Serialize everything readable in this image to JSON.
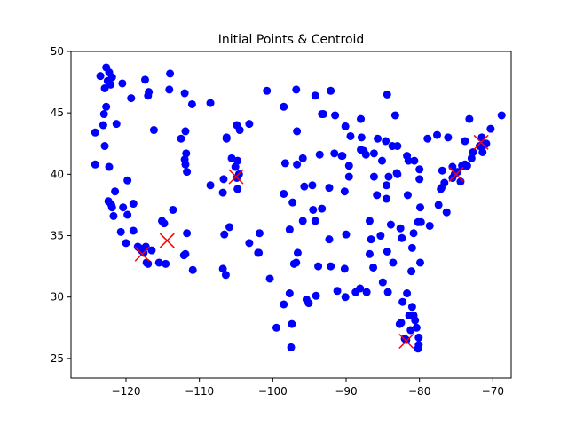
{
  "chart_data": {
    "type": "scatter",
    "title": "Initial Points & Centroid",
    "xlabel": "",
    "ylabel": "",
    "xlim": [
      -127.5,
      -67.5
    ],
    "ylim": [
      23.4,
      50
    ],
    "xticks": [
      -120,
      -110,
      -100,
      -90,
      -80,
      -70
    ],
    "xtick_labels": [
      "−120",
      "−110",
      "−100",
      "−90",
      "−80",
      "−70"
    ],
    "yticks": [
      25,
      30,
      35,
      40,
      45,
      50
    ],
    "ytick_labels": [
      "25",
      "30",
      "35",
      "40",
      "45",
      "50"
    ],
    "grid": false,
    "series": [
      {
        "marker": "circle",
        "color": "#0000ff",
        "points": [
          [
            -122.7,
            48.7
          ],
          [
            -122.3,
            48.3
          ],
          [
            -122.5,
            47.6
          ],
          [
            -122.1,
            47.3
          ],
          [
            -122.9,
            47.0
          ],
          [
            -123.5,
            48.0
          ],
          [
            -121.9,
            47.9
          ],
          [
            -120.5,
            47.4
          ],
          [
            -119.3,
            46.2
          ],
          [
            -117.4,
            47.7
          ],
          [
            -116.9,
            46.7
          ],
          [
            -117.0,
            46.4
          ],
          [
            -114.1,
            46.9
          ],
          [
            -114.0,
            48.2
          ],
          [
            -108.5,
            45.8
          ],
          [
            -111.0,
            45.7
          ],
          [
            -112.0,
            46.6
          ],
          [
            -104.9,
            44.0
          ],
          [
            -104.5,
            43.6
          ],
          [
            -106.3,
            42.9
          ],
          [
            -105.6,
            41.3
          ],
          [
            -104.8,
            41.1
          ],
          [
            -106.3,
            43.0
          ],
          [
            -104.6,
            40.0
          ],
          [
            -106.7,
            39.6
          ],
          [
            -108.5,
            39.1
          ],
          [
            -106.8,
            38.5
          ],
          [
            -104.8,
            38.8
          ],
          [
            -104.9,
            39.7
          ],
          [
            -105.1,
            40.6
          ],
          [
            -101.8,
            35.2
          ],
          [
            -102.0,
            33.6
          ],
          [
            -106.6,
            35.1
          ],
          [
            -106.8,
            32.3
          ],
          [
            -105.9,
            35.7
          ],
          [
            -103.2,
            34.4
          ],
          [
            -111.7,
            35.2
          ],
          [
            -111.9,
            33.5
          ],
          [
            -112.1,
            33.4
          ],
          [
            -110.9,
            32.2
          ],
          [
            -114.6,
            32.7
          ],
          [
            -113.6,
            37.1
          ],
          [
            -111.9,
            40.8
          ],
          [
            -111.7,
            40.2
          ],
          [
            -112.0,
            41.2
          ],
          [
            -111.8,
            41.7
          ],
          [
            -115.1,
            36.2
          ],
          [
            -114.8,
            36.0
          ],
          [
            -119.8,
            39.5
          ],
          [
            -116.2,
            43.6
          ],
          [
            -112.5,
            42.9
          ],
          [
            -111.9,
            43.5
          ],
          [
            -117.0,
            32.7
          ],
          [
            -117.2,
            32.8
          ],
          [
            -117.9,
            33.8
          ],
          [
            -118.2,
            34.0
          ],
          [
            -118.4,
            34.1
          ],
          [
            -117.3,
            34.1
          ],
          [
            -116.5,
            33.8
          ],
          [
            -117.6,
            33.6
          ],
          [
            -119.0,
            35.4
          ],
          [
            -119.8,
            36.7
          ],
          [
            -120.7,
            35.3
          ],
          [
            -121.9,
            37.3
          ],
          [
            -122.4,
            37.8
          ],
          [
            -122.0,
            37.5
          ],
          [
            -121.5,
            38.6
          ],
          [
            -122.3,
            40.6
          ],
          [
            -122.9,
            42.3
          ],
          [
            -123.0,
            44.9
          ],
          [
            -122.7,
            45.5
          ],
          [
            -123.1,
            44.0
          ],
          [
            -121.3,
            44.1
          ],
          [
            -124.2,
            40.8
          ],
          [
            -124.2,
            43.4
          ],
          [
            -121.7,
            36.6
          ],
          [
            -120.0,
            34.4
          ],
          [
            -120.4,
            37.3
          ],
          [
            -119.0,
            37.6
          ],
          [
            -115.5,
            32.8
          ],
          [
            -97.7,
            30.3
          ],
          [
            -97.1,
            32.7
          ],
          [
            -96.8,
            32.8
          ],
          [
            -98.5,
            29.4
          ],
          [
            -95.4,
            29.8
          ],
          [
            -95.1,
            29.5
          ],
          [
            -94.1,
            30.1
          ],
          [
            -97.4,
            27.8
          ],
          [
            -97.5,
            25.9
          ],
          [
            -99.5,
            27.5
          ],
          [
            -101.9,
            33.6
          ],
          [
            -100.4,
            31.5
          ],
          [
            -106.4,
            31.8
          ],
          [
            -97.7,
            35.5
          ],
          [
            -95.9,
            36.2
          ],
          [
            -96.6,
            33.6
          ],
          [
            -94.6,
            39.1
          ],
          [
            -97.3,
            37.7
          ],
          [
            -95.7,
            39.0
          ],
          [
            -98.5,
            38.4
          ],
          [
            -96.7,
            40.8
          ],
          [
            -95.9,
            41.3
          ],
          [
            -98.3,
            40.9
          ],
          [
            -100.8,
            46.8
          ],
          [
            -96.8,
            46.9
          ],
          [
            -98.5,
            45.5
          ],
          [
            -96.7,
            43.5
          ],
          [
            -103.2,
            44.1
          ],
          [
            -93.3,
            44.9
          ],
          [
            -93.1,
            44.9
          ],
          [
            -92.1,
            46.8
          ],
          [
            -94.2,
            46.4
          ],
          [
            -91.6,
            41.7
          ],
          [
            -93.6,
            41.6
          ],
          [
            -90.6,
            41.5
          ],
          [
            -92.3,
            34.7
          ],
          [
            -94.2,
            36.2
          ],
          [
            -90.1,
            30.0
          ],
          [
            -91.2,
            30.5
          ],
          [
            -93.8,
            32.5
          ],
          [
            -92.1,
            32.5
          ],
          [
            -90.2,
            32.3
          ],
          [
            -88.7,
            30.4
          ],
          [
            -88.1,
            30.7
          ],
          [
            -86.8,
            33.5
          ],
          [
            -86.3,
            32.4
          ],
          [
            -85.0,
            31.2
          ],
          [
            -84.4,
            33.7
          ],
          [
            -83.6,
            32.8
          ],
          [
            -81.1,
            32.1
          ],
          [
            -84.3,
            30.4
          ],
          [
            -82.5,
            27.9
          ],
          [
            -82.7,
            27.8
          ],
          [
            -81.4,
            28.5
          ],
          [
            -80.2,
            25.8
          ],
          [
            -80.1,
            26.1
          ],
          [
            -81.7,
            30.3
          ],
          [
            -81.8,
            26.5
          ],
          [
            -82.0,
            26.6
          ],
          [
            -80.6,
            28.1
          ],
          [
            -80.1,
            26.7
          ],
          [
            -81.0,
            29.2
          ],
          [
            -82.3,
            29.6
          ],
          [
            -87.2,
            30.4
          ],
          [
            -86.6,
            34.7
          ],
          [
            -86.8,
            36.2
          ],
          [
            -90.0,
            35.1
          ],
          [
            -83.9,
            35.9
          ],
          [
            -85.3,
            35.0
          ],
          [
            -84.5,
            38.0
          ],
          [
            -85.8,
            38.3
          ],
          [
            -86.2,
            39.8
          ],
          [
            -87.6,
            41.9
          ],
          [
            -88.0,
            42.0
          ],
          [
            -89.6,
            39.8
          ],
          [
            -89.6,
            40.7
          ],
          [
            -90.2,
            38.6
          ],
          [
            -94.5,
            37.1
          ],
          [
            -93.3,
            37.2
          ],
          [
            -92.3,
            38.9
          ],
          [
            -87.9,
            43.0
          ],
          [
            -89.4,
            43.1
          ],
          [
            -88.0,
            44.5
          ],
          [
            -83.0,
            42.3
          ],
          [
            -85.7,
            42.9
          ],
          [
            -84.6,
            42.7
          ],
          [
            -83.7,
            42.3
          ],
          [
            -84.5,
            39.1
          ],
          [
            -83.0,
            40.0
          ],
          [
            -81.7,
            41.5
          ],
          [
            -84.2,
            39.8
          ],
          [
            -80.0,
            40.4
          ],
          [
            -81.5,
            41.1
          ],
          [
            -80.7,
            41.1
          ],
          [
            -78.9,
            42.9
          ],
          [
            -77.6,
            43.2
          ],
          [
            -76.1,
            43.0
          ],
          [
            -73.8,
            42.7
          ],
          [
            -75.2,
            40.0
          ],
          [
            -75.5,
            40.6
          ],
          [
            -76.9,
            40.3
          ],
          [
            -74.2,
            40.7
          ],
          [
            -74.0,
            40.7
          ],
          [
            -73.8,
            40.8
          ],
          [
            -73.5,
            40.7
          ],
          [
            -72.9,
            41.3
          ],
          [
            -72.7,
            41.8
          ],
          [
            -71.4,
            41.8
          ],
          [
            -71.1,
            42.4
          ],
          [
            -71.8,
            42.3
          ],
          [
            -70.9,
            42.5
          ],
          [
            -71.5,
            43.0
          ],
          [
            -70.3,
            43.7
          ],
          [
            -73.2,
            44.5
          ],
          [
            -68.8,
            44.8
          ],
          [
            -77.0,
            38.9
          ],
          [
            -77.1,
            38.8
          ],
          [
            -76.6,
            39.3
          ],
          [
            -77.4,
            37.5
          ],
          [
            -76.3,
            36.9
          ],
          [
            -79.9,
            37.3
          ],
          [
            -80.8,
            35.2
          ],
          [
            -78.6,
            35.8
          ],
          [
            -79.8,
            36.1
          ],
          [
            -80.2,
            36.1
          ],
          [
            -82.6,
            35.6
          ],
          [
            -81.0,
            34.0
          ],
          [
            -79.9,
            32.8
          ],
          [
            -82.4,
            34.8
          ],
          [
            -81.6,
            38.3
          ],
          [
            -80.0,
            39.6
          ],
          [
            -75.5,
            39.7
          ],
          [
            -74.8,
            40.2
          ],
          [
            -74.4,
            39.4
          ],
          [
            -83.1,
            40.1
          ],
          [
            -86.2,
            41.7
          ],
          [
            -85.1,
            41.1
          ],
          [
            -87.3,
            41.6
          ],
          [
            -90.5,
            41.5
          ],
          [
            -91.5,
            44.8
          ],
          [
            -90.1,
            43.9
          ],
          [
            -84.4,
            46.5
          ],
          [
            -83.3,
            44.8
          ],
          [
            -80.8,
            28.5
          ],
          [
            -81.2,
            27.3
          ],
          [
            -80.4,
            27.5
          ]
        ]
      },
      {
        "marker": "x",
        "color": "#ff0000",
        "points": [
          [
            -117.8,
            33.5
          ],
          [
            -114.4,
            34.6
          ],
          [
            -105.0,
            39.8
          ],
          [
            -81.8,
            26.4
          ],
          [
            -75.0,
            40.0
          ],
          [
            -71.6,
            42.6
          ]
        ]
      }
    ]
  }
}
